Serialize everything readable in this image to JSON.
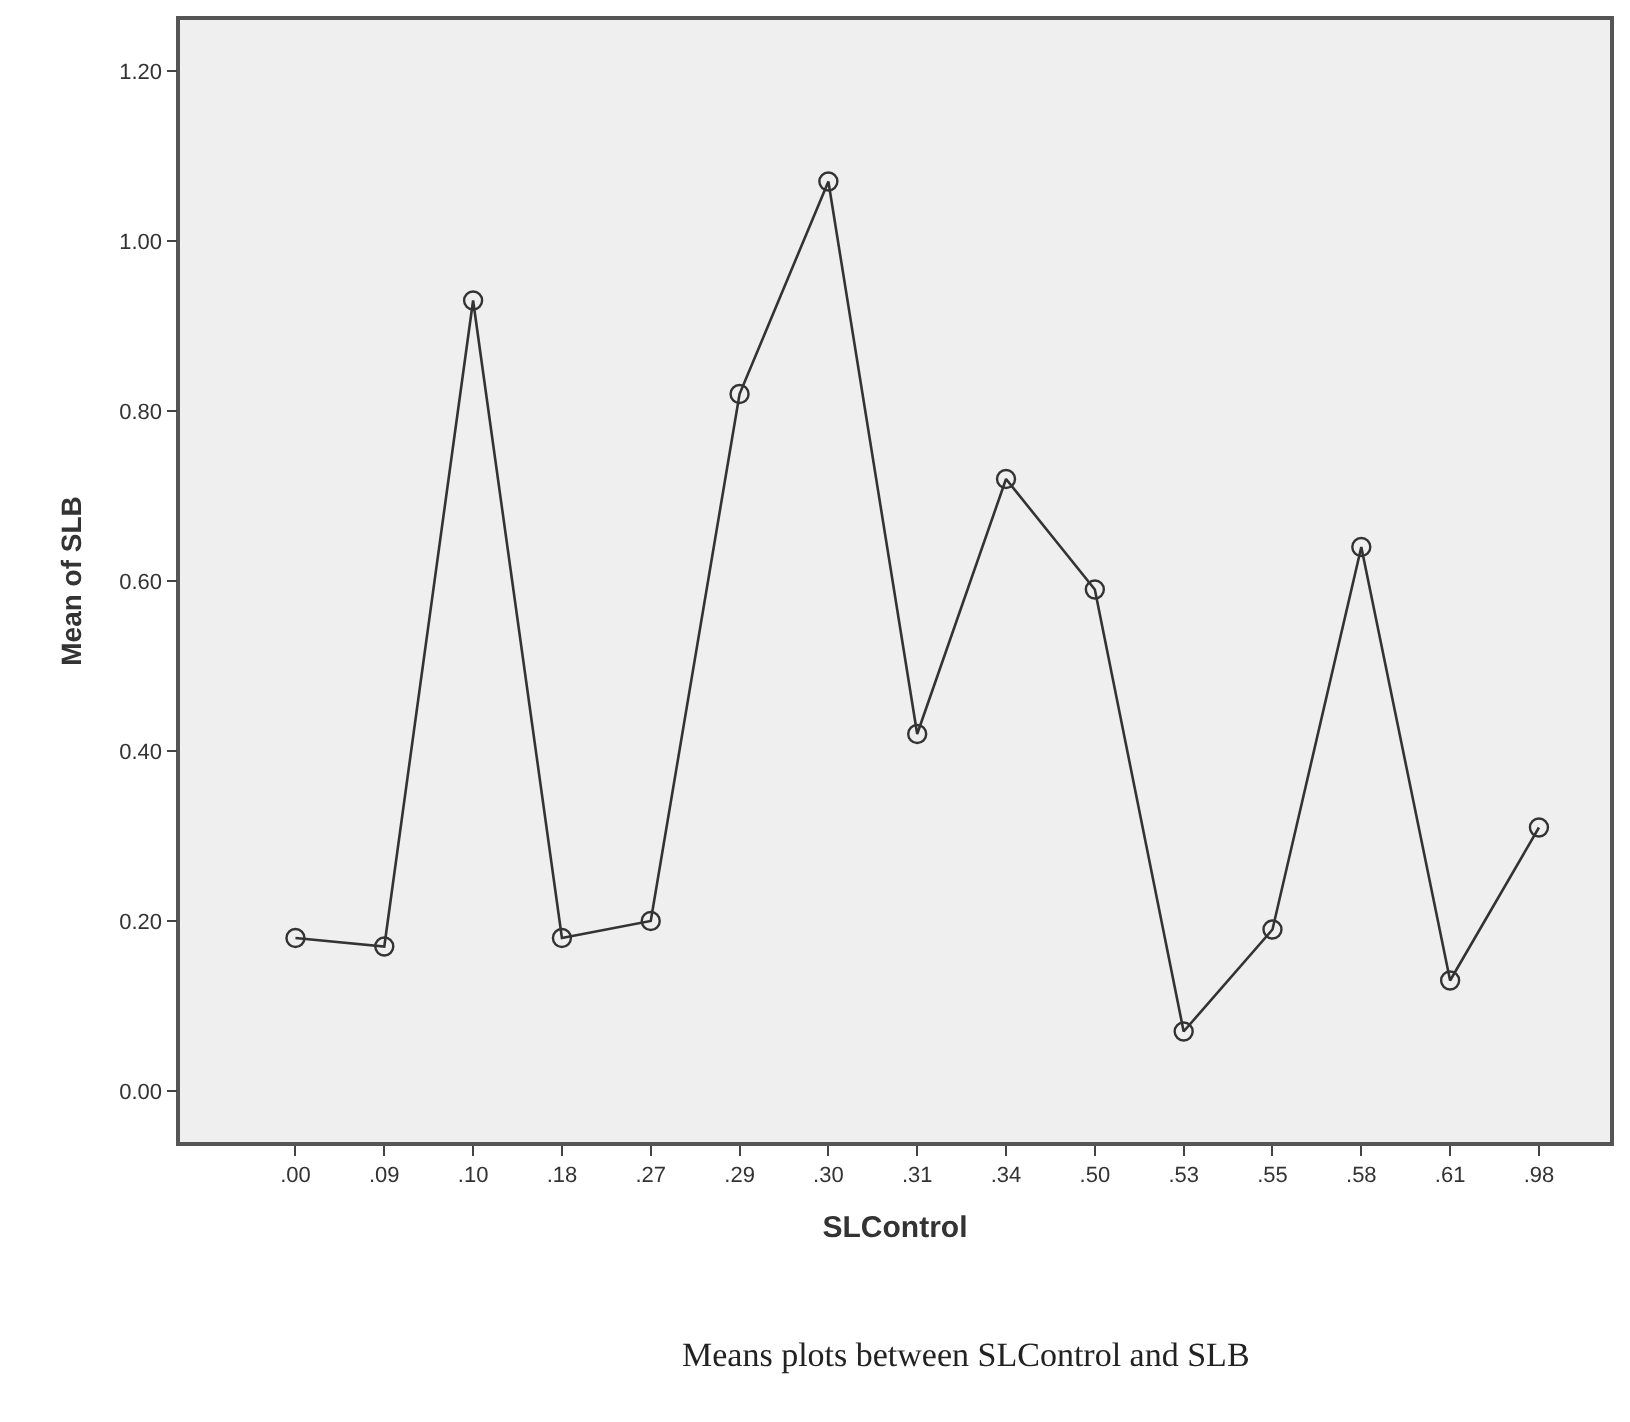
{
  "chart_data": {
    "type": "line",
    "xlabel": "SLControl",
    "ylabel": "Mean of SLB",
    "categories": [
      ".00",
      ".09",
      ".10",
      ".18",
      ".27",
      ".29",
      ".30",
      ".31",
      ".34",
      ".50",
      ".53",
      ".55",
      ".58",
      ".61",
      ".98"
    ],
    "series": [
      {
        "color": "#333333",
        "values": [
          0.18,
          0.17,
          0.93,
          0.18,
          0.2,
          0.82,
          1.07,
          0.42,
          0.72,
          0.59,
          0.07,
          0.19,
          0.64,
          0.13,
          0.31
        ]
      }
    ],
    "ylim": [
      -0.06,
      1.26
    ],
    "yticks": [
      {
        "value": 0,
        "label": "0.00"
      },
      {
        "value": 0.2,
        "label": "0.20"
      },
      {
        "value": 0.4,
        "label": "0.40"
      },
      {
        "value": 0.6,
        "label": "0.60"
      },
      {
        "value": 0.8,
        "label": "0.80"
      },
      {
        "value": 1,
        "label": "1.00"
      },
      {
        "value": 1.2,
        "label": "1.20"
      }
    ],
    "grid": false,
    "marker": "circle",
    "line_style": "solid",
    "annotations": [
      "Means plots between SLControl and SLB"
    ]
  }
}
